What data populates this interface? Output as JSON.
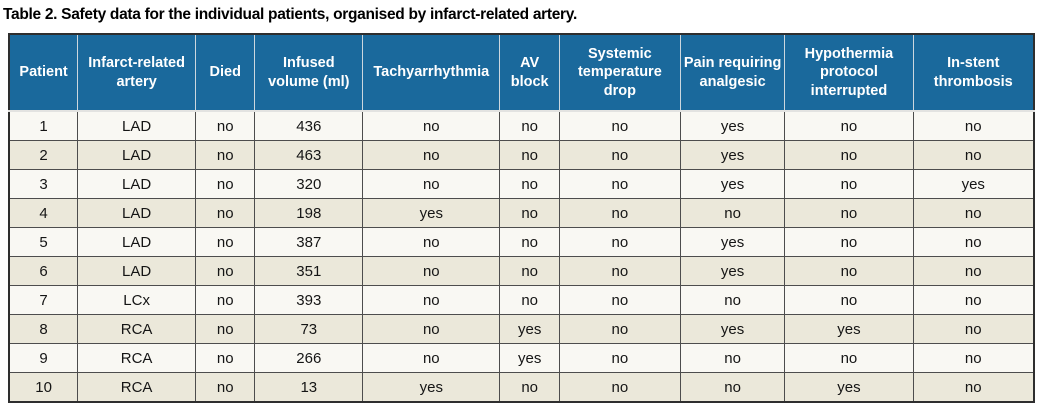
{
  "title": "Table 2. Safety data for the individual patients, organised by infarct-related artery.",
  "colors": {
    "title_text": "#000000",
    "header_bg": "#1a699c",
    "header_text": "#ffffff",
    "row_odd": "#f9f8f3",
    "row_even": "#ebe8da",
    "border_dark": "#4d4d4d"
  },
  "chart_data": {
    "type": "table",
    "title": "Table 2. Safety data for the individual patients, organised by infarct-related artery.",
    "columns": [
      "Patient",
      "Infarct-related artery",
      "Died",
      "Infused volume (ml)",
      "Tachyarrhythmia",
      "AV block",
      "Systemic temperature drop",
      "Pain requiring analgesic",
      "Hypothermia protocol interrupted",
      "In-stent thrombosis"
    ],
    "rows": [
      [
        "1",
        "LAD",
        "no",
        "436",
        "no",
        "no",
        "no",
        "yes",
        "no",
        "no"
      ],
      [
        "2",
        "LAD",
        "no",
        "463",
        "no",
        "no",
        "no",
        "yes",
        "no",
        "no"
      ],
      [
        "3",
        "LAD",
        "no",
        "320",
        "no",
        "no",
        "no",
        "yes",
        "no",
        "yes"
      ],
      [
        "4",
        "LAD",
        "no",
        "198",
        "yes",
        "no",
        "no",
        "no",
        "no",
        "no"
      ],
      [
        "5",
        "LAD",
        "no",
        "387",
        "no",
        "no",
        "no",
        "yes",
        "no",
        "no"
      ],
      [
        "6",
        "LAD",
        "no",
        "351",
        "no",
        "no",
        "no",
        "yes",
        "no",
        "no"
      ],
      [
        "7",
        "LCx",
        "no",
        "393",
        "no",
        "no",
        "no",
        "no",
        "no",
        "no"
      ],
      [
        "8",
        "RCA",
        "no",
        "73",
        "no",
        "yes",
        "no",
        "yes",
        "yes",
        "no"
      ],
      [
        "9",
        "RCA",
        "no",
        "266",
        "no",
        "yes",
        "no",
        "no",
        "no",
        "no"
      ],
      [
        "10",
        "RCA",
        "no",
        "13",
        "yes",
        "no",
        "no",
        "no",
        "yes",
        "no"
      ]
    ]
  }
}
